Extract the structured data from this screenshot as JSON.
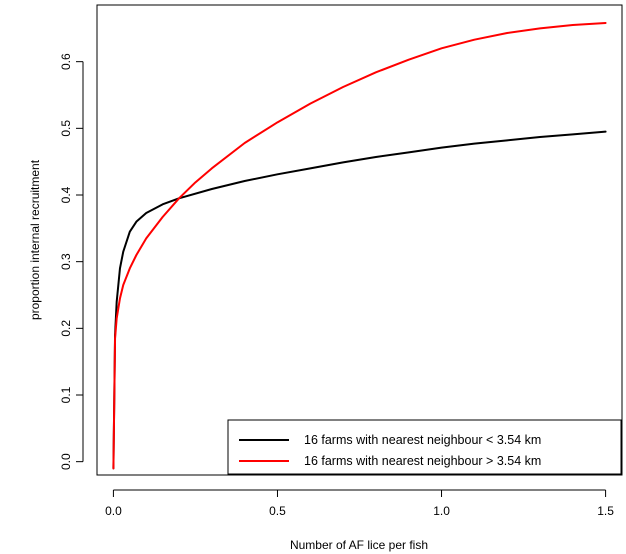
{
  "chart_data": {
    "type": "line",
    "title": "",
    "xlabel": "Number of AF lice per fish",
    "ylabel": "proportion internal recruitment",
    "xlim": [
      -0.05,
      1.55
    ],
    "ylim": [
      -0.02,
      0.685
    ],
    "x_ticks": [
      0.0,
      0.5,
      1.0,
      1.5
    ],
    "x_tick_labels": [
      "0.0",
      "0.5",
      "1.0",
      "1.5"
    ],
    "y_ticks": [
      0.0,
      0.1,
      0.2,
      0.3,
      0.4,
      0.5,
      0.6
    ],
    "y_tick_labels": [
      "0.0",
      "0.1",
      "0.2",
      "0.3",
      "0.4",
      "0.5",
      "0.6"
    ],
    "grid": false,
    "legend_position": "bottom-right",
    "series": [
      {
        "name": "16 farms with nearest neighbour < 3.54 km",
        "color": "#000000",
        "x": [
          0.0,
          0.005,
          0.01,
          0.02,
          0.03,
          0.05,
          0.07,
          0.1,
          0.15,
          0.2,
          0.3,
          0.4,
          0.5,
          0.6,
          0.7,
          0.8,
          0.9,
          1.0,
          1.1,
          1.2,
          1.3,
          1.4,
          1.5
        ],
        "y": [
          -0.01,
          0.19,
          0.24,
          0.29,
          0.315,
          0.345,
          0.36,
          0.373,
          0.386,
          0.395,
          0.409,
          0.421,
          0.431,
          0.44,
          0.449,
          0.457,
          0.464,
          0.471,
          0.477,
          0.482,
          0.487,
          0.491,
          0.495
        ]
      },
      {
        "name": "16 farms with nearest neighbour > 3.54 km",
        "color": "#ff0000",
        "x": [
          0.0,
          0.005,
          0.01,
          0.02,
          0.03,
          0.05,
          0.07,
          0.1,
          0.15,
          0.2,
          0.25,
          0.3,
          0.4,
          0.5,
          0.6,
          0.7,
          0.8,
          0.9,
          1.0,
          1.1,
          1.2,
          1.3,
          1.4,
          1.5
        ],
        "y": [
          -0.01,
          0.185,
          0.215,
          0.245,
          0.265,
          0.29,
          0.31,
          0.335,
          0.367,
          0.395,
          0.419,
          0.44,
          0.478,
          0.509,
          0.537,
          0.562,
          0.584,
          0.603,
          0.62,
          0.633,
          0.643,
          0.65,
          0.655,
          0.658
        ]
      }
    ]
  }
}
